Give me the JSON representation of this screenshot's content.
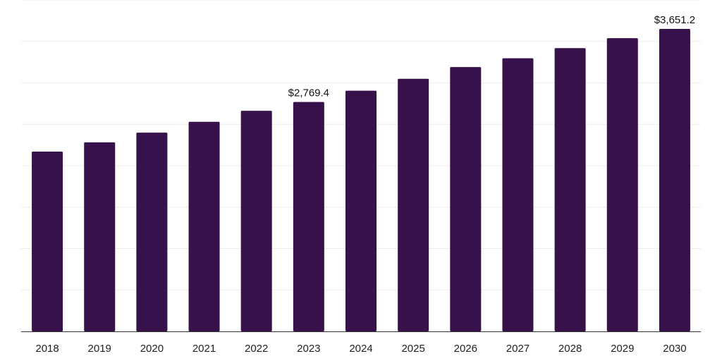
{
  "chart_data": {
    "type": "bar",
    "categories": [
      "2018",
      "2019",
      "2020",
      "2021",
      "2022",
      "2023",
      "2024",
      "2025",
      "2026",
      "2027",
      "2028",
      "2029",
      "2030"
    ],
    "values": [
      2170,
      2282,
      2399,
      2530,
      2663,
      2769.4,
      2905,
      3049,
      3190,
      3297,
      3419,
      3539,
      3651.2
    ],
    "data_labels": [
      {
        "index": 5,
        "text": "$2,769.4"
      },
      {
        "index": 12,
        "text": "$3,651.2"
      }
    ],
    "title": "",
    "xlabel": "",
    "ylabel": "",
    "ylim": [
      0,
      4000
    ],
    "grid": true,
    "legend": "none",
    "colors": {
      "bar": "#37124a",
      "grid": "#ececec",
      "axis": "#333333"
    }
  }
}
